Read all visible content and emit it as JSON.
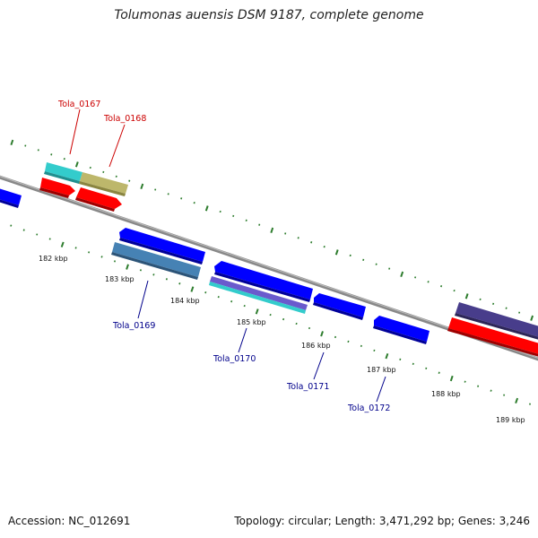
{
  "title": "Tolumonas auensis DSM 9187, complete genome",
  "footer": {
    "accession": "Accession: NC_012691",
    "summary": "Topology: circular; Length: 3,471,292 bp; Genes: 3,246"
  },
  "colors": {
    "backbone": "#888888",
    "tick": "#2e7d2e",
    "forward_label": "#cc0000",
    "reverse_label": "#00008b",
    "red": "#ff0000",
    "blue": "#0000ff",
    "cyan": "#33cccc",
    "khaki": "#bdb76b",
    "steelblue": "#4682b4",
    "slateblue": "#483d8b",
    "purple": "#6a5acd"
  },
  "kbp_labels": [
    "182 kbp",
    "183 kbp",
    "184 kbp",
    "185 kbp",
    "186 kbp",
    "187 kbp",
    "188 kbp",
    "189 kbp"
  ],
  "gene_labels": {
    "forward": [
      "Tola_0167",
      "Tola_0168"
    ],
    "reverse": [
      "Tola_0169",
      "Tola_0170",
      "Tola_0171",
      "Tola_0172"
    ]
  }
}
